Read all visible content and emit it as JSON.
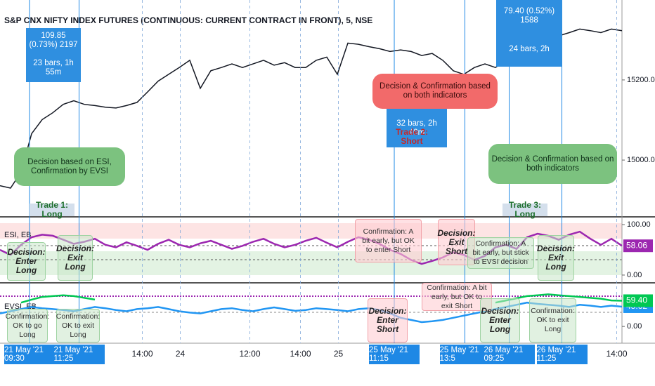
{
  "chart_data": [
    {
      "type": "line",
      "title": "S&P CNX NIFTY INDEX FUTURES (CONTINUOUS: CURRENT CONTRACT IN FRONT), 5, NSE",
      "xlim": [
        0,
        59
      ],
      "ylim": [
        14860,
        15396
      ],
      "yticks": [
        {
          "value": 15200,
          "label": "15200.00"
        },
        {
          "value": 15000,
          "label": "15000.00"
        }
      ],
      "series": [
        {
          "color": "#131722",
          "values": [
            14936,
            14930,
            14970,
            15066,
            15101,
            15118,
            15139,
            15148,
            15139,
            15136,
            15132,
            15130,
            15136,
            15144,
            15170,
            15197,
            15214,
            15231,
            15249,
            15179,
            15223,
            15231,
            15240,
            15231,
            15240,
            15249,
            15237,
            15243,
            15231,
            15231,
            15249,
            15257,
            15214,
            15292,
            15289,
            15283,
            15278,
            15271,
            15275,
            15271,
            15261,
            15266,
            15249,
            15223,
            15214,
            15231,
            15240,
            15231,
            15249,
            15275,
            15301,
            15310,
            15318,
            15310,
            15318,
            15327,
            15323,
            15318,
            15327,
            15323
          ]
        }
      ],
      "annotations": [
        "109.85 (0.73%) 2197",
        "23 bars, 1h 55m",
        "Decision based on ESI, Confirmation by EVSI",
        "Trade 1: Long",
        "Decision & Confirmation based on both indicators",
        "32 bars, 2h 40m",
        "Trade 2: Short",
        "79.40 (0.52%) 1588",
        "24 bars, 2h",
        "Decision & Confirmation based on both indicators",
        "Trade 3: Long"
      ]
    },
    {
      "type": "line",
      "title": "ESI, EB",
      "xlim": [
        0,
        59
      ],
      "ylim": [
        -14,
        114
      ],
      "yticks": [
        {
          "value": 100,
          "label": "100.00"
        },
        {
          "value": 0,
          "label": "0.00"
        }
      ],
      "series": [
        {
          "color": "#9c27b0",
          "values": [
            50,
            40,
            60,
            75,
            80,
            78,
            70,
            62,
            66,
            72,
            60,
            55,
            65,
            58,
            50,
            62,
            70,
            60,
            55,
            63,
            68,
            60,
            52,
            58,
            66,
            72,
            62,
            55,
            60,
            68,
            74,
            64,
            55,
            66,
            75,
            70,
            62,
            50,
            42,
            30,
            22,
            28,
            35,
            45,
            40,
            30,
            38,
            55,
            60,
            52,
            75,
            82,
            78,
            70,
            80,
            86,
            72,
            60,
            72,
            58.06
          ]
        }
      ],
      "annotations": [
        "Decision: Enter Long",
        "Decision: Exit Long",
        "Confirmation: A bit early, but OK to enter Short",
        "Decision: Exit Short",
        "Confirmation: A bit early, but stick to EVSI decision",
        "Decision: Exit Long"
      ]
    },
    {
      "type": "line",
      "title": "EVSI, EB",
      "xlim": [
        0,
        59
      ],
      "ylim": [
        -37,
        99
      ],
      "yticks": [
        {
          "value": 0,
          "label": "0.00"
        }
      ],
      "xticks": [
        {
          "value": 13.5,
          "label": "14:00"
        },
        {
          "value": 17.1,
          "label": "24"
        },
        {
          "value": 23.7,
          "label": "12:00"
        },
        {
          "value": 28.5,
          "label": "14:00"
        },
        {
          "value": 32.1,
          "label": "25"
        },
        {
          "value": 58.5,
          "label": "14:00"
        }
      ],
      "markers": [
        {
          "value": 2.8,
          "label": "21 May '21  09:30"
        },
        {
          "value": 7.5,
          "label": "21 May '21  11:25"
        },
        {
          "value": 37.4,
          "label": "25 May '21  11:15"
        },
        {
          "value": 44.1,
          "label": "25 May '21  13:5"
        },
        {
          "value": 48.3,
          "label": "26 May '21  09:25"
        },
        {
          "value": 53.3,
          "label": "26 May '21  11:25"
        }
      ],
      "series": [
        {
          "color": "#2196f3",
          "values": [
            30,
            35,
            40,
            45,
            42,
            40,
            38,
            35,
            40,
            45,
            42,
            38,
            35,
            40,
            42,
            45,
            40,
            35,
            32,
            30,
            35,
            40,
            42,
            38,
            35,
            40,
            44,
            40,
            36,
            38,
            42,
            40,
            38,
            35,
            40,
            42,
            38,
            30,
            20,
            15,
            10,
            12,
            15,
            20,
            25,
            30,
            35,
            40,
            45,
            50,
            55,
            52,
            50,
            48,
            45,
            50,
            48,
            45,
            48,
            45.62
          ]
        },
        {
          "color": "#00c853",
          "values": [
            null,
            null,
            55,
            62,
            68,
            70,
            72,
            70,
            66,
            62,
            null,
            null,
            null,
            null,
            null,
            null,
            null,
            null,
            null,
            null,
            null,
            null,
            null,
            null,
            null,
            null,
            null,
            null,
            null,
            null,
            null,
            null,
            null,
            null,
            null,
            null,
            null,
            null,
            null,
            null,
            null,
            null,
            null,
            null,
            null,
            null,
            null,
            55,
            60,
            65,
            70,
            72,
            74,
            72,
            70,
            68,
            66,
            64,
            60,
            59.4
          ],
          "value_labels": [
            null,
            null,
            null,
            null,
            null,
            null,
            null,
            null,
            null,
            null,
            null,
            null,
            null,
            null,
            null,
            null,
            null,
            null,
            null,
            null,
            null,
            null,
            null,
            null,
            null,
            null,
            null,
            null,
            null,
            null,
            null,
            null,
            null,
            null,
            null,
            null,
            null,
            null,
            null,
            null,
            null,
            null,
            null,
            null,
            null,
            null,
            null,
            null,
            null,
            null,
            null,
            null,
            null,
            null,
            null,
            null,
            null,
            null,
            null,
            "59.40"
          ]
        }
      ],
      "annotations": [
        "Confirmation: OK to go Long",
        "Confirmation: OK to exit Long",
        "Confirmation: A bit early, but OK to exit Short",
        "Decision: Enter Short",
        "Decision: Enter Long",
        "Confirmation: OK to exit Long"
      ]
    }
  ]
}
